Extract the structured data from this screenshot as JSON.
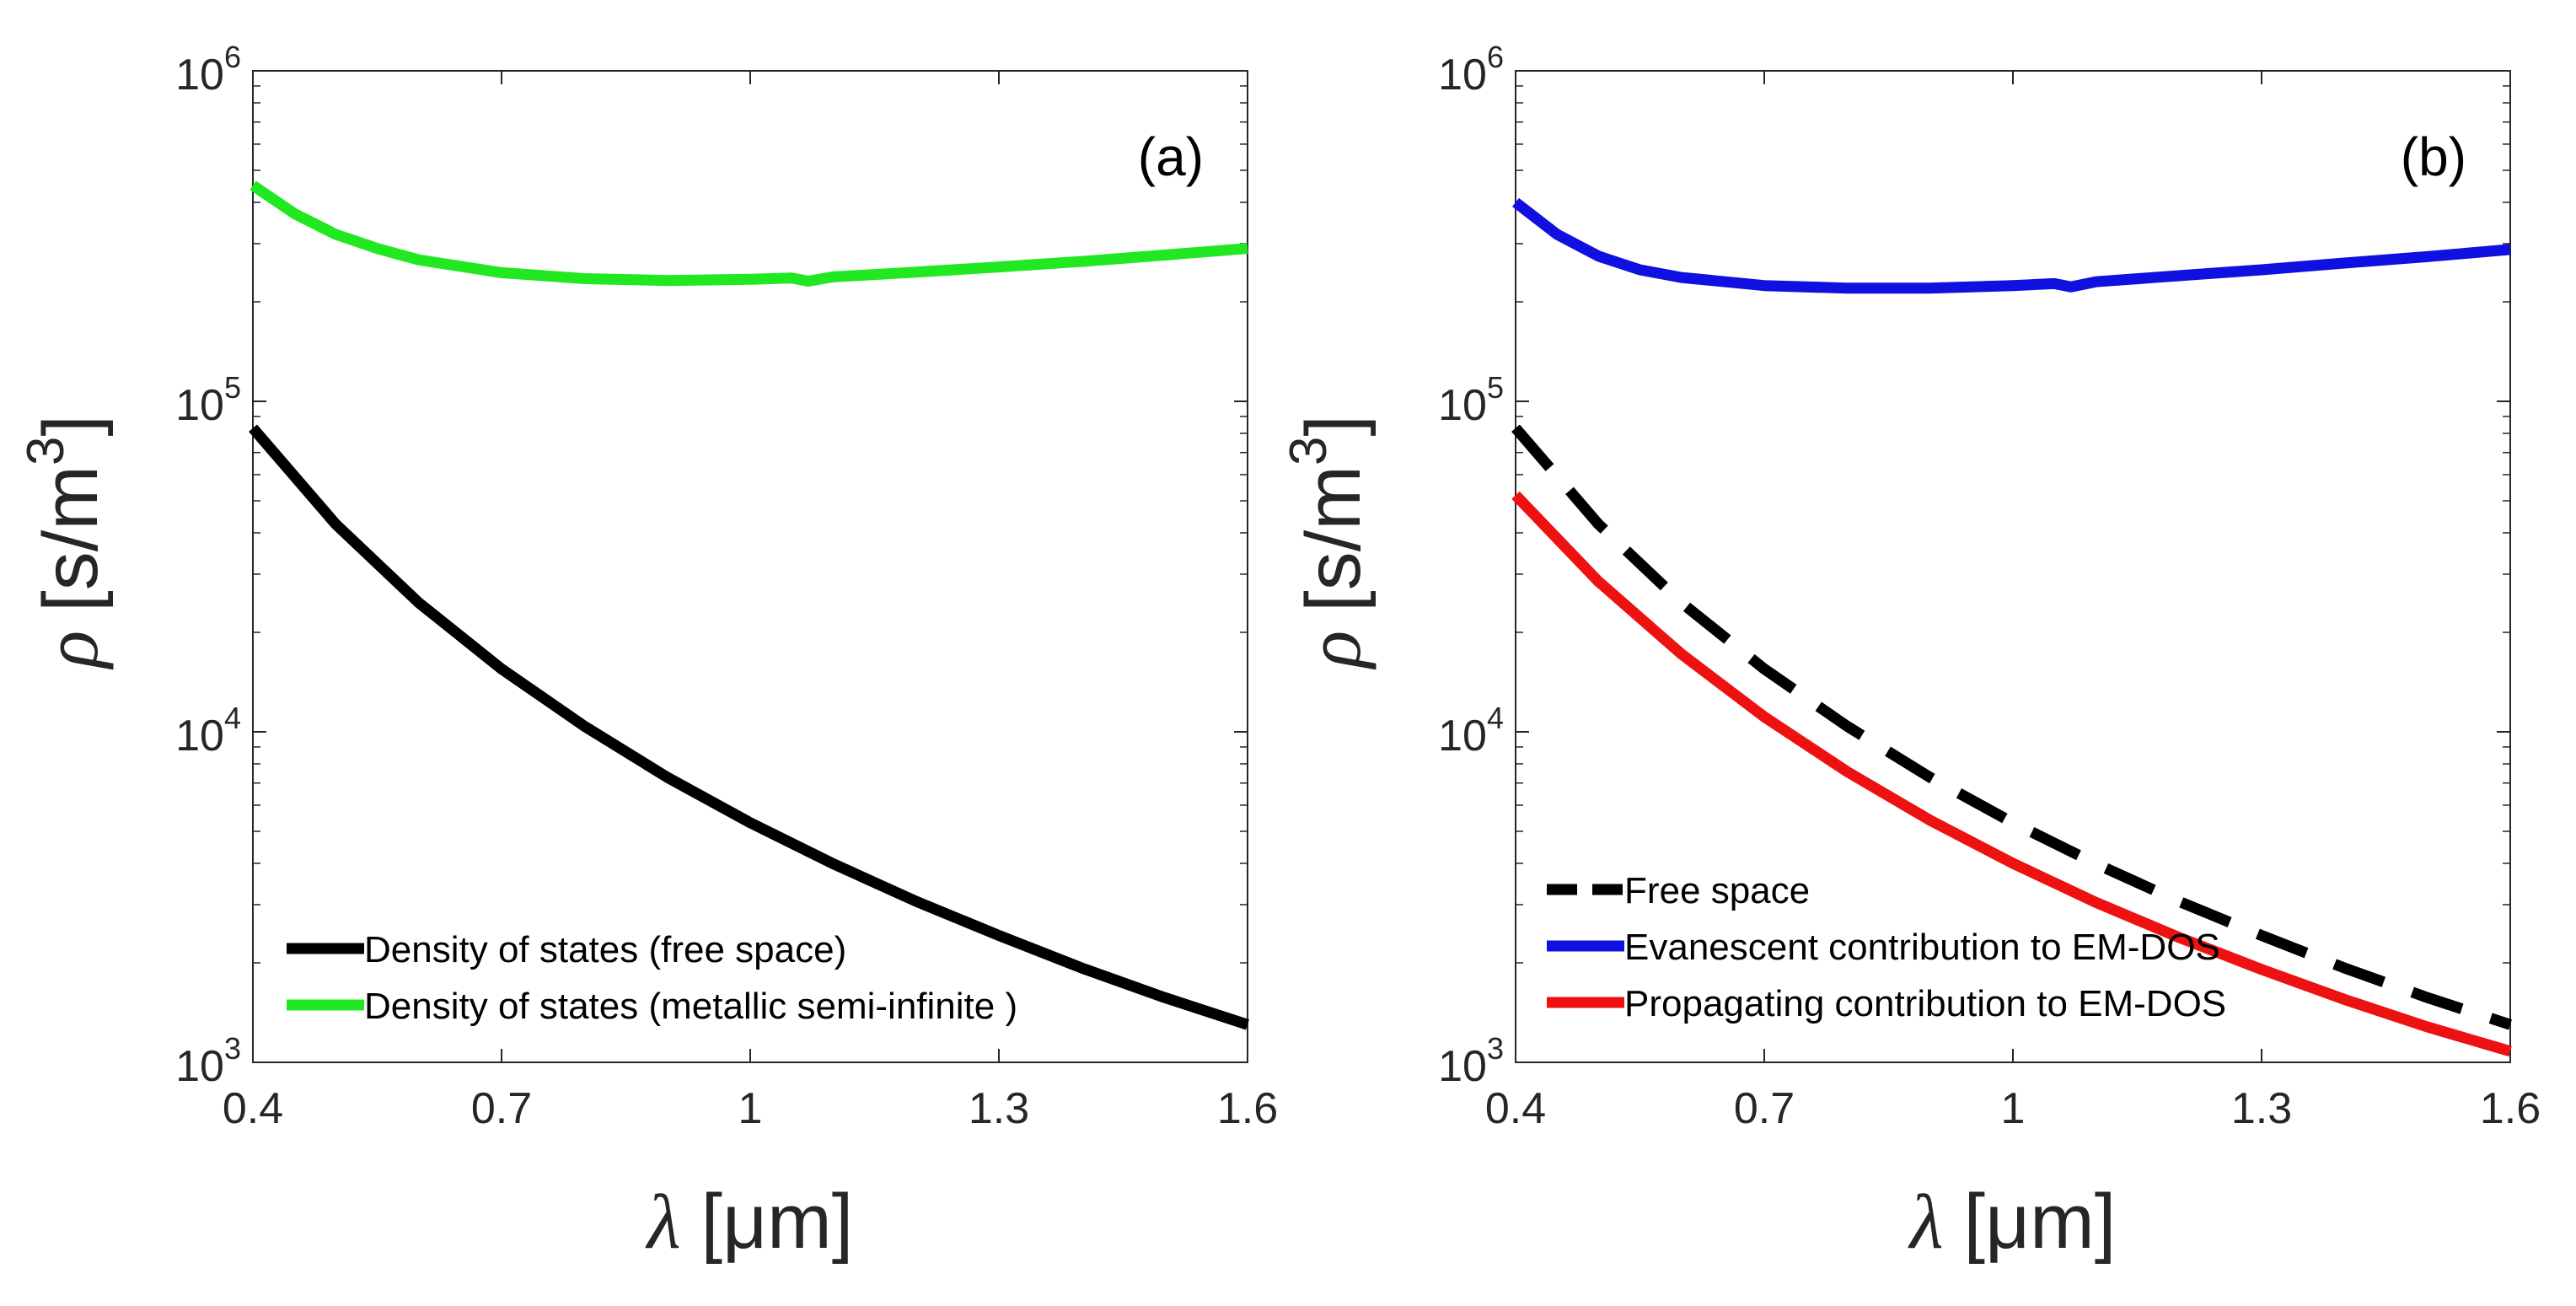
{
  "chart_data": [
    {
      "type": "line",
      "panel_label": "(a)",
      "x_label_symbol": "λ",
      "x_label_unit": "[μm]",
      "y_label_symbol": "ρ",
      "y_label_unit": "[s/m",
      "y_label_unit_exp": "3",
      "y_label_unit_close": "]",
      "xlim": [
        0.4,
        1.6
      ],
      "ylim": [
        1000,
        1000000
      ],
      "yscale": "log",
      "x_ticks": [
        "0.4",
        "0.7",
        "1",
        "1.3",
        "1.6"
      ],
      "x_tick_values": [
        0.4,
        0.7,
        1.0,
        1.3,
        1.6
      ],
      "y_ticks": [
        {
          "base": "10",
          "exp": "3",
          "value": 1000
        },
        {
          "base": "10",
          "exp": "4",
          "value": 10000
        },
        {
          "base": "10",
          "exp": "5",
          "value": 100000
        },
        {
          "base": "10",
          "exp": "6",
          "value": 1000000
        }
      ],
      "legend_position": "bottom-left",
      "series": [
        {
          "name": "Density of states (free space)",
          "color": "#000000",
          "dash": "solid",
          "x": [
            0.4,
            0.5,
            0.6,
            0.7,
            0.8,
            0.9,
            1.0,
            1.1,
            1.2,
            1.3,
            1.4,
            1.5,
            1.6
          ],
          "y": [
            83000,
            42500,
            24600,
            15500,
            10400,
            7280,
            5310,
            3990,
            3070,
            2420,
            1930,
            1570,
            1300
          ]
        },
        {
          "name": "Density of states (metallic semi-infinite )",
          "color": "#22e822",
          "dash": "solid",
          "x": [
            0.4,
            0.45,
            0.5,
            0.55,
            0.6,
            0.7,
            0.8,
            0.9,
            1.0,
            1.05,
            1.07,
            1.1,
            1.2,
            1.3,
            1.4,
            1.5,
            1.6
          ],
          "y": [
            450000,
            370000,
            320000,
            290000,
            268000,
            245000,
            235000,
            232000,
            234000,
            236000,
            231000,
            238000,
            246000,
            255000,
            265000,
            277000,
            290000
          ]
        }
      ]
    },
    {
      "type": "line",
      "panel_label": "(b)",
      "x_label_symbol": "λ",
      "x_label_unit": "[μm]",
      "y_label_symbol": "ρ",
      "y_label_unit": "[s/m",
      "y_label_unit_exp": "3",
      "y_label_unit_close": "]",
      "xlim": [
        0.4,
        1.6
      ],
      "ylim": [
        1000,
        1000000
      ],
      "yscale": "log",
      "x_ticks": [
        "0.4",
        "0.7",
        "1",
        "1.3",
        "1.6"
      ],
      "x_tick_values": [
        0.4,
        0.7,
        1.0,
        1.3,
        1.6
      ],
      "y_ticks": [
        {
          "base": "10",
          "exp": "3",
          "value": 1000
        },
        {
          "base": "10",
          "exp": "4",
          "value": 10000
        },
        {
          "base": "10",
          "exp": "5",
          "value": 100000
        },
        {
          "base": "10",
          "exp": "6",
          "value": 1000000
        }
      ],
      "legend_position": "bottom-left",
      "series": [
        {
          "name": "Free space",
          "color": "#000000",
          "dash": "dashed",
          "x": [
            0.4,
            0.5,
            0.6,
            0.7,
            0.8,
            0.9,
            1.0,
            1.1,
            1.2,
            1.3,
            1.4,
            1.5,
            1.6
          ],
          "y": [
            83000,
            42500,
            24600,
            15500,
            10400,
            7280,
            5310,
            3990,
            3070,
            2420,
            1930,
            1570,
            1300
          ]
        },
        {
          "name": "Evanescent contribution to EM-DOS",
          "color": "#1010e0",
          "dash": "solid",
          "x": [
            0.4,
            0.45,
            0.5,
            0.55,
            0.6,
            0.7,
            0.8,
            0.9,
            1.0,
            1.05,
            1.07,
            1.1,
            1.2,
            1.3,
            1.4,
            1.5,
            1.6
          ],
          "y": [
            400000,
            320000,
            275000,
            250000,
            237000,
            224000,
            220000,
            220000,
            224000,
            227000,
            222000,
            230000,
            240000,
            250000,
            262000,
            274000,
            288000
          ]
        },
        {
          "name": "Propagating contribution to EM-DOS",
          "color": "#ee1111",
          "dash": "solid",
          "x": [
            0.4,
            0.5,
            0.6,
            0.7,
            0.8,
            0.9,
            1.0,
            1.1,
            1.2,
            1.3,
            1.4,
            1.5,
            1.6
          ],
          "y": [
            52000,
            28500,
            17200,
            11100,
            7580,
            5400,
            4000,
            3050,
            2390,
            1910,
            1550,
            1280,
            1080
          ]
        }
      ]
    }
  ]
}
